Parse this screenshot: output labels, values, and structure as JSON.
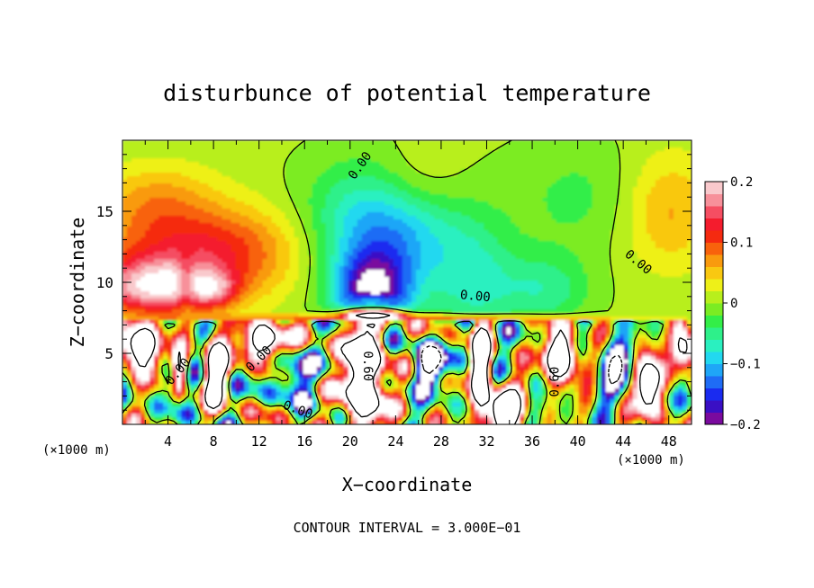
{
  "chart_data": {
    "type": "heatmap",
    "title": "disturbunce of potential temperature",
    "xlabel": "X−coordinate",
    "ylabel": "Z−coordinate",
    "x_unit_left": "(×1000 m)",
    "x_unit_right": "(×1000 m)",
    "xlim": [
      0,
      50
    ],
    "ylim": [
      0,
      20
    ],
    "x_ticks": [
      4,
      8,
      12,
      16,
      20,
      24,
      28,
      32,
      36,
      40,
      44,
      48
    ],
    "x_tick_labels": [
      "4",
      "8",
      "12",
      "16",
      "20",
      "24",
      "28",
      "32",
      "36",
      "40",
      "44",
      "48"
    ],
    "y_ticks": [
      5,
      10,
      15
    ],
    "y_tick_labels": [
      "5",
      "10",
      "15"
    ],
    "colorbar": {
      "min": -0.2,
      "max": 0.2,
      "ticks": [
        0.2,
        0.1,
        0,
        -0.1,
        -0.2
      ],
      "tick_labels": [
        "0.2",
        "0.1",
        "0",
        "−0.1",
        "−0.2"
      ],
      "colors": [
        "#7a0a9e",
        "#3a0fc4",
        "#1a2bf0",
        "#1f6cf5",
        "#1fa6f7",
        "#22d8f0",
        "#2af0c0",
        "#2ef08a",
        "#33ee48",
        "#7bec23",
        "#b8ef1c",
        "#eef018",
        "#f9c811",
        "#f99a0e",
        "#f8620c",
        "#f52a10",
        "#f41c2d",
        "#f54e62",
        "#f7909a",
        "#f9c9cc"
      ]
    },
    "contour_labels": [
      {
        "text": "0.00",
        "x": 20.9,
        "z": 18.2,
        "angle": -55
      },
      {
        "text": "0.00",
        "x": 45.3,
        "z": 11.4,
        "angle": 40
      },
      {
        "text": "0.00",
        "x": 31.0,
        "z": 9.0,
        "angle": 5
      },
      {
        "text": "0.00",
        "x": 4.9,
        "z": 3.7,
        "angle": -50
      },
      {
        "text": "0.00",
        "x": 12.0,
        "z": 4.6,
        "angle": -45
      },
      {
        "text": "0.00",
        "x": 15.4,
        "z": 1.0,
        "angle": 20
      },
      {
        "text": "0.60",
        "x": 21.5,
        "z": 4.1,
        "angle": 90
      },
      {
        "text": "0.60",
        "x": 38.0,
        "z": 3.0,
        "angle": -90
      }
    ],
    "footer": "CONTOUR INTERVAL = 3.000E−01"
  }
}
